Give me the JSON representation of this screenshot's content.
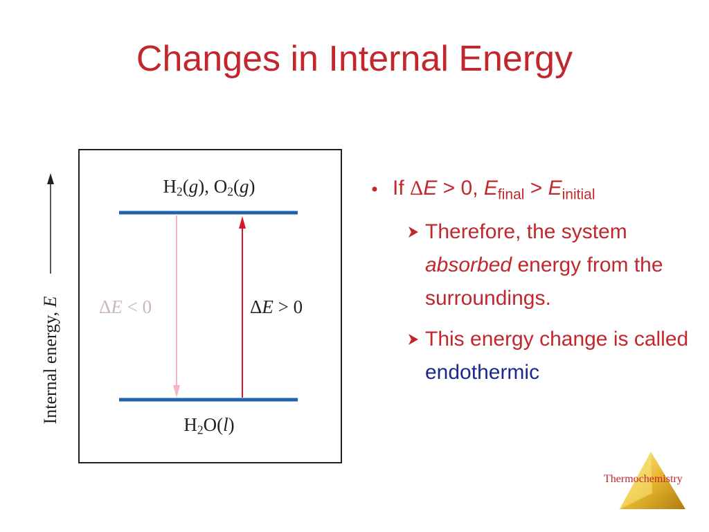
{
  "title": "Changes in Internal Energy",
  "diagram": {
    "y_axis_label": [
      "Internal energy, ",
      "E"
    ],
    "top_level": [
      "H",
      "2",
      "(",
      "g",
      "), O",
      "2",
      "(",
      "g",
      ")"
    ],
    "bottom_level": [
      "H",
      "2",
      "O(",
      "l",
      ")"
    ],
    "left_arrow_label": [
      "Δ",
      "E",
      " < 0"
    ],
    "right_arrow_label": [
      "Δ",
      "E",
      " > 0"
    ]
  },
  "bullets": {
    "main": [
      "If ",
      "Δ",
      "E",
      " > 0, ",
      "E",
      "final",
      " > ",
      "E",
      "initial"
    ],
    "sub": [
      [
        "Therefore, the system ",
        "absorbed",
        " energy from the surroundings."
      ],
      [
        "This energy change is called ",
        "endothermic"
      ]
    ]
  },
  "footer": "Thermochemistry"
}
